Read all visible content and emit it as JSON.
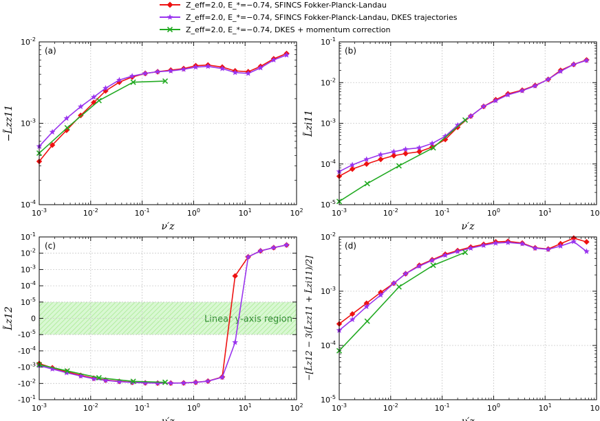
{
  "figure": {
    "legend": [
      {
        "label": "Z_eff=2.0, E_*=−0.74, SFINCS Fokker-Planck-Landau",
        "color": "#ee1111",
        "marker": "diamond"
      },
      {
        "label": "Z_eff=2.0, E_*=−0.74, SFINCS Fokker-Planck-Landau, DKES trajectories",
        "color": "#9933ee",
        "marker": "star"
      },
      {
        "label": "Z_eff=2.0, E_*=−0.74, DKES + momentum correction",
        "color": "#22aa22",
        "marker": "x"
      }
    ],
    "x_label": "ν′z",
    "x_tick_labels": [
      "10-3",
      "10-2",
      "10-1",
      "100",
      "101",
      "102"
    ]
  },
  "chart_data": [
    {
      "panel": "(a)",
      "type": "line",
      "xscale": "log",
      "yscale": "log",
      "xlim": [
        0.001,
        100
      ],
      "ylim": [
        0.0001,
        0.01
      ],
      "xlabel": "ν′z",
      "ylabel": "−L̃zz11",
      "ytick_labels": [
        "10-4",
        "10-3",
        "10-2"
      ],
      "series": [
        {
          "name": "SFINCS Fokker-Planck-Landau",
          "color": "#ee1111",
          "marker": "diamond",
          "x": [
            0.001,
            0.0018,
            0.0034,
            0.0064,
            0.0115,
            0.0195,
            0.036,
            0.064,
            0.115,
            0.2,
            0.36,
            0.64,
            1.1,
            1.9,
            3.6,
            6.4,
            11.5,
            20,
            36,
            64
          ],
          "y": [
            0.00034,
            0.00054,
            0.00082,
            0.00125,
            0.0018,
            0.0025,
            0.0032,
            0.0037,
            0.0041,
            0.0043,
            0.0045,
            0.0047,
            0.0051,
            0.0052,
            0.0049,
            0.0044,
            0.0043,
            0.005,
            0.0062,
            0.0072
          ]
        },
        {
          "name": "SFINCS Fokker-Planck-Landau, DKES trajectories",
          "color": "#9933ee",
          "marker": "star",
          "x": [
            0.001,
            0.0018,
            0.0034,
            0.0064,
            0.0115,
            0.0195,
            0.036,
            0.064,
            0.115,
            0.2,
            0.36,
            0.64,
            1.1,
            1.9,
            3.6,
            6.4,
            11.5,
            20,
            36,
            64
          ],
          "y": [
            0.00052,
            0.00078,
            0.00115,
            0.0016,
            0.0021,
            0.0027,
            0.0034,
            0.0038,
            0.0041,
            0.0043,
            0.0044,
            0.0046,
            0.0049,
            0.005,
            0.0047,
            0.0042,
            0.0041,
            0.0048,
            0.006,
            0.0069
          ]
        },
        {
          "name": "DKES + momentum correction",
          "color": "#22aa22",
          "marker": "x",
          "x": [
            0.001,
            0.0035,
            0.0145,
            0.067,
            0.28
          ],
          "y": [
            0.00043,
            0.00088,
            0.0019,
            0.0032,
            0.0033
          ]
        }
      ]
    },
    {
      "panel": "(b)",
      "type": "line",
      "xscale": "log",
      "yscale": "log",
      "xlim": [
        0.001,
        100
      ],
      "ylim": [
        1e-05,
        0.1
      ],
      "xlabel": "ν′z",
      "ylabel": "L̃zi11",
      "ytick_labels": [
        "10-5",
        "10-4",
        "10-3",
        "10-2",
        "10-1"
      ],
      "series": [
        {
          "name": "SFINCS Fokker-Planck-Landau",
          "color": "#ee1111",
          "marker": "diamond",
          "x": [
            0.001,
            0.0018,
            0.0034,
            0.0064,
            0.0115,
            0.0195,
            0.036,
            0.064,
            0.115,
            0.2,
            0.36,
            0.64,
            1.1,
            1.9,
            3.6,
            6.4,
            11.5,
            20,
            36,
            64
          ],
          "y": [
            5e-05,
            7.5e-05,
            0.0001,
            0.00013,
            0.00016,
            0.00018,
            0.0002,
            0.00026,
            0.0004,
            0.0008,
            0.0015,
            0.0026,
            0.0038,
            0.0053,
            0.0065,
            0.0085,
            0.012,
            0.02,
            0.028,
            0.036
          ]
        },
        {
          "name": "SFINCS Fokker-Planck-Landau, DKES trajectories",
          "color": "#9933ee",
          "marker": "star",
          "x": [
            0.001,
            0.0018,
            0.0034,
            0.0064,
            0.0115,
            0.0195,
            0.036,
            0.064,
            0.115,
            0.2,
            0.36,
            0.64,
            1.1,
            1.9,
            3.6,
            6.4,
            11.5,
            20,
            36,
            64
          ],
          "y": [
            6.5e-05,
            9.5e-05,
            0.00013,
            0.00017,
            0.0002,
            0.00023,
            0.00025,
            0.00032,
            0.00048,
            0.0009,
            0.0015,
            0.0026,
            0.0036,
            0.005,
            0.0063,
            0.0083,
            0.012,
            0.019,
            0.028,
            0.035
          ]
        },
        {
          "name": "DKES + momentum correction",
          "color": "#22aa22",
          "marker": "x",
          "x": [
            0.001,
            0.0035,
            0.0145,
            0.067,
            0.28
          ],
          "y": [
            1.2e-05,
            3.3e-05,
            9e-05,
            0.00025,
            0.0012
          ]
        }
      ]
    },
    {
      "panel": "(c)",
      "type": "line",
      "xscale": "log",
      "yscale": "symlog",
      "linthresh": 1e-05,
      "xlim": [
        0.001,
        100
      ],
      "ylim": [
        -0.1,
        0.1
      ],
      "xlabel": "ν′z",
      "ylabel": "L̃z12",
      "ytick_labels": [
        "10-1",
        "10-2",
        "10-3",
        "10-4",
        "10-5",
        "0",
        "-10-5",
        "-10-4",
        "-10-3",
        "-10-2",
        "-10-1"
      ],
      "annotation": "Linear y-axis region",
      "series": [
        {
          "name": "SFINCS Fokker-Planck-Landau",
          "color": "#ee1111",
          "marker": "diamond",
          "x": [
            0.001,
            0.0018,
            0.0034,
            0.0064,
            0.0115,
            0.0195,
            0.036,
            0.064,
            0.115,
            0.2,
            0.36,
            0.64,
            1.1,
            1.9,
            3.6,
            6.4,
            11.5,
            20,
            36,
            64
          ],
          "y": [
            -0.0006,
            -0.0011,
            -0.0019,
            -0.0032,
            -0.0048,
            -0.0062,
            -0.0075,
            -0.0085,
            -0.0092,
            -0.0095,
            -0.0095,
            -0.0093,
            -0.0085,
            -0.0072,
            -0.004,
            0.0004,
            0.006,
            0.014,
            0.022,
            0.032
          ]
        },
        {
          "name": "SFINCS Fokker-Planck-Landau, DKES trajectories",
          "color": "#9933ee",
          "marker": "star",
          "x": [
            0.001,
            0.0018,
            0.0034,
            0.0064,
            0.0115,
            0.0195,
            0.036,
            0.064,
            0.115,
            0.2,
            0.36,
            0.64,
            1.1,
            1.9,
            3.6,
            6.4,
            11.5,
            20,
            36,
            64
          ],
          "y": [
            -0.0008,
            -0.0013,
            -0.0022,
            -0.0035,
            -0.0052,
            -0.0065,
            -0.0078,
            -0.0087,
            -0.0093,
            -0.0096,
            -0.0096,
            -0.0094,
            -0.0086,
            -0.0073,
            -0.0042,
            -3e-05,
            0.006,
            0.014,
            0.022,
            0.032
          ]
        },
        {
          "name": "DKES + momentum correction",
          "color": "#22aa22",
          "marker": "x",
          "x": [
            0.001,
            0.0035,
            0.0145,
            0.067,
            0.28
          ],
          "y": [
            -0.0007,
            -0.0017,
            -0.0045,
            -0.0075,
            -0.0085
          ]
        }
      ]
    },
    {
      "panel": "(d)",
      "type": "line",
      "xscale": "log",
      "yscale": "log",
      "xlim": [
        0.001,
        100
      ],
      "ylim": [
        1e-05,
        0.01
      ],
      "xlabel": "ν′z",
      "ylabel": "−[L̃z12 − 3(L̃zz11 + L̃zi11)/2]",
      "ytick_labels": [
        "10-5",
        "10-4",
        "10-3",
        "10-2"
      ],
      "series": [
        {
          "name": "SFINCS Fokker-Planck-Landau",
          "color": "#ee1111",
          "marker": "diamond",
          "x": [
            0.001,
            0.0018,
            0.0034,
            0.0064,
            0.0115,
            0.0195,
            0.036,
            0.064,
            0.115,
            0.2,
            0.36,
            0.64,
            1.1,
            1.9,
            3.6,
            6.4,
            11.5,
            20,
            36,
            64
          ],
          "y": [
            0.00025,
            0.00038,
            0.0006,
            0.00095,
            0.0014,
            0.0021,
            0.003,
            0.0038,
            0.0048,
            0.0056,
            0.0065,
            0.0073,
            0.0081,
            0.0083,
            0.0077,
            0.0063,
            0.006,
            0.0075,
            0.0095,
            0.0081
          ]
        },
        {
          "name": "SFINCS Fokker-Planck-Landau, DKES trajectories",
          "color": "#9933ee",
          "marker": "star",
          "x": [
            0.001,
            0.0018,
            0.0034,
            0.0064,
            0.0115,
            0.0195,
            0.036,
            0.064,
            0.115,
            0.2,
            0.36,
            0.64,
            1.1,
            1.9,
            3.6,
            6.4,
            11.5,
            20,
            36,
            64
          ],
          "y": [
            0.00019,
            0.0003,
            0.00052,
            0.00085,
            0.0014,
            0.0021,
            0.0029,
            0.0037,
            0.0046,
            0.0054,
            0.0062,
            0.007,
            0.0077,
            0.0079,
            0.0075,
            0.0062,
            0.0059,
            0.0068,
            0.0082,
            0.0054
          ]
        },
        {
          "name": "DKES + momentum correction",
          "color": "#22aa22",
          "marker": "x",
          "x": [
            0.001,
            0.0035,
            0.0145,
            0.067,
            0.28
          ],
          "y": [
            8e-05,
            0.00028,
            0.0012,
            0.003,
            0.0052
          ]
        }
      ]
    }
  ]
}
